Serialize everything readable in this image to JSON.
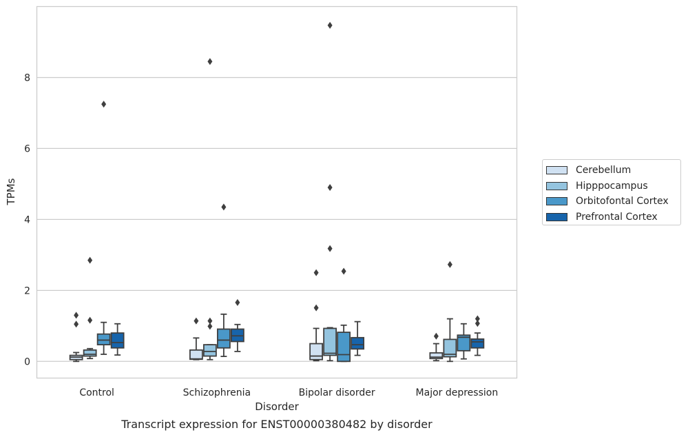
{
  "chart_data": {
    "type": "box",
    "xlabel": "Disorder",
    "ylabel": "TPMs",
    "caption": "Transcript expression for ENST00000380482 by disorder",
    "categories": [
      "Control",
      "Schizophrenia",
      "Bipolar disorder",
      "Major depression"
    ],
    "yticks": [
      0,
      2,
      4,
      6,
      8
    ],
    "ylim": [
      -0.47,
      10.0
    ],
    "grid": "horizontal",
    "legend_position": "right",
    "series": [
      {
        "name": "Cerebellum",
        "color": "#d0e1f2"
      },
      {
        "name": "Hipppocampus",
        "color": "#94c4df"
      },
      {
        "name": "Orbitofontal Cortex",
        "color": "#4a98c9"
      },
      {
        "name": "Prefrontal Cortex",
        "color": "#1764ab"
      }
    ],
    "boxes": [
      [
        {
          "whislo": 0.0,
          "q1": 0.05,
          "med": 0.12,
          "q3": 0.17,
          "whishi": 0.25,
          "fliers": [
            1.3,
            1.05
          ]
        },
        {
          "whislo": 0.08,
          "q1": 0.15,
          "med": 0.2,
          "q3": 0.32,
          "whishi": 0.36,
          "fliers": [
            2.85,
            1.16
          ]
        },
        {
          "whislo": 0.2,
          "q1": 0.47,
          "med": 0.6,
          "q3": 0.77,
          "whishi": 1.1,
          "fliers": [
            7.25
          ]
        },
        {
          "whislo": 0.18,
          "q1": 0.38,
          "med": 0.53,
          "q3": 0.8,
          "whishi": 1.06,
          "fliers": []
        }
      ],
      [
        {
          "whislo": 0.05,
          "q1": 0.06,
          "med": 0.07,
          "q3": 0.32,
          "whishi": 0.66,
          "fliers": [
            1.14
          ]
        },
        {
          "whislo": 0.05,
          "q1": 0.15,
          "med": 0.28,
          "q3": 0.47,
          "whishi": 0.47,
          "fliers": [
            8.45,
            1.14,
            0.99
          ]
        },
        {
          "whislo": 0.14,
          "q1": 0.38,
          "med": 0.6,
          "q3": 0.91,
          "whishi": 1.33,
          "fliers": [
            4.35
          ]
        },
        {
          "whislo": 0.28,
          "q1": 0.56,
          "med": 0.72,
          "q3": 0.91,
          "whishi": 1.04,
          "fliers": [
            1.66
          ]
        }
      ],
      [
        {
          "whislo": 0.02,
          "q1": 0.05,
          "med": 0.15,
          "q3": 0.5,
          "whishi": 0.93,
          "fliers": [
            2.5,
            1.51
          ]
        },
        {
          "whislo": 0.02,
          "q1": 0.17,
          "med": 0.23,
          "q3": 0.93,
          "whishi": 0.95,
          "fliers": [
            9.47,
            4.9,
            3.18
          ]
        },
        {
          "whislo": 0.0,
          "q1": 0.0,
          "med": 0.19,
          "q3": 0.82,
          "whishi": 1.02,
          "fliers": [
            2.54
          ]
        },
        {
          "whislo": 0.17,
          "q1": 0.35,
          "med": 0.47,
          "q3": 0.67,
          "whishi": 1.12,
          "fliers": []
        }
      ],
      [
        {
          "whislo": 0.02,
          "q1": 0.08,
          "med": 0.12,
          "q3": 0.24,
          "whishi": 0.5,
          "fliers": [
            0.71
          ]
        },
        {
          "whislo": 0.0,
          "q1": 0.13,
          "med": 0.2,
          "q3": 0.62,
          "whishi": 1.2,
          "fliers": [
            2.73
          ]
        },
        {
          "whislo": 0.07,
          "q1": 0.3,
          "med": 0.68,
          "q3": 0.74,
          "whishi": 1.06,
          "fliers": []
        },
        {
          "whislo": 0.17,
          "q1": 0.38,
          "med": 0.55,
          "q3": 0.63,
          "whishi": 0.8,
          "fliers": [
            1.2,
            1.07
          ]
        }
      ]
    ]
  }
}
